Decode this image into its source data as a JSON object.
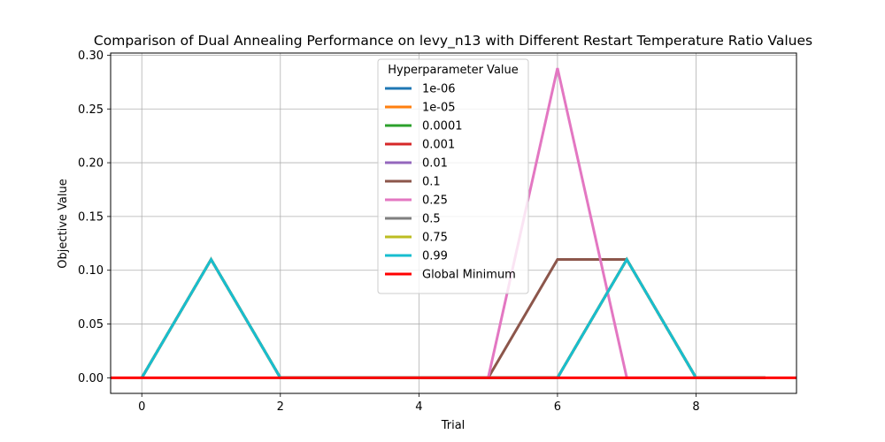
{
  "chart_data": {
    "type": "line",
    "title": "Comparison of Dual Annealing Performance on levy_n13 with Different Restart Temperature Ratio Values",
    "xlabel": "Trial",
    "ylabel": "Objective Value",
    "xlim": [
      -0.45,
      9.45
    ],
    "ylim": [
      -0.0145,
      0.302
    ],
    "xticks": [
      0,
      2,
      4,
      6,
      8
    ],
    "yticks": [
      0.0,
      0.05,
      0.1,
      0.15,
      0.2,
      0.25,
      0.3
    ],
    "ytick_labels": [
      "0.00",
      "0.05",
      "0.10",
      "0.15",
      "0.20",
      "0.25",
      "0.30"
    ],
    "grid": true,
    "legend": {
      "title": "Hyperparameter Value",
      "placement": "upper center"
    },
    "x": [
      0,
      1,
      2,
      3,
      4,
      5,
      6,
      7,
      8,
      9
    ],
    "series": [
      {
        "name": "1e-06",
        "color": "#1f77b4",
        "values": [
          0.0,
          0.11,
          0.0,
          0.0,
          0.0,
          0.0,
          0.0,
          0.11,
          0.0,
          0.0
        ]
      },
      {
        "name": "1e-05",
        "color": "#ff7f0e",
        "values": [
          0.0,
          0.11,
          0.0,
          0.0,
          0.0,
          0.0,
          0.0,
          0.11,
          0.0,
          0.0
        ]
      },
      {
        "name": "0.0001",
        "color": "#2ca02c",
        "values": [
          0.0,
          0.11,
          0.0,
          0.0,
          0.0,
          0.0,
          0.0,
          0.11,
          0.0,
          0.0
        ]
      },
      {
        "name": "0.001",
        "color": "#d62728",
        "values": [
          0.0,
          0.11,
          0.0,
          0.0,
          0.0,
          0.0,
          0.0,
          0.11,
          0.0,
          0.0
        ]
      },
      {
        "name": "0.01",
        "color": "#9467bd",
        "values": [
          0.0,
          0.11,
          0.0,
          0.0,
          0.0,
          0.0,
          0.0,
          0.11,
          0.0,
          0.0
        ]
      },
      {
        "name": "0.1",
        "color": "#8c564b",
        "values": [
          0.0,
          0.11,
          0.0,
          0.0,
          0.0,
          0.0,
          0.11,
          0.11,
          0.0,
          0.0
        ]
      },
      {
        "name": "0.25",
        "color": "#e377c2",
        "values": [
          0.0,
          0.11,
          0.0,
          0.0,
          0.0,
          0.0,
          0.288,
          0.0,
          0.0,
          0.0
        ]
      },
      {
        "name": "0.5",
        "color": "#7f7f7f",
        "values": [
          0.0,
          0.11,
          0.0,
          0.0,
          0.0,
          0.0,
          0.0,
          0.11,
          0.0,
          0.0
        ]
      },
      {
        "name": "0.75",
        "color": "#bcbd22",
        "values": [
          0.0,
          0.11,
          0.0,
          0.0,
          0.0,
          0.0,
          0.0,
          0.11,
          0.0,
          0.0
        ]
      },
      {
        "name": "0.99",
        "color": "#17becf",
        "values": [
          0.0,
          0.11,
          0.0,
          0.0,
          0.0,
          0.0,
          0.0,
          0.11,
          0.0,
          0.0
        ]
      }
    ],
    "reference_line": {
      "name": "Global Minimum",
      "color": "#ff0000",
      "y": 0.0
    }
  }
}
